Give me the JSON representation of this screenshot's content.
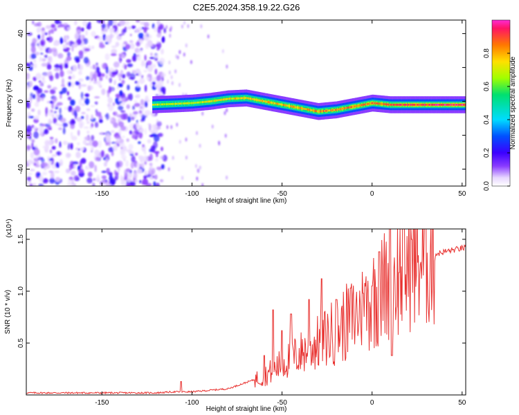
{
  "title": "C2E5.2024.358.19.22.G26",
  "chart_data": [
    {
      "type": "heatmap",
      "title": "C2E5.2024.358.19.22.G26",
      "xlabel": "Height of straight line (km)",
      "ylabel": "Frequency (Hz)",
      "xlim": [
        -192,
        52
      ],
      "ylim": [
        -50,
        48
      ],
      "xticks": [
        -150,
        -100,
        -50,
        0,
        50
      ],
      "yticks": [
        -40,
        -20,
        0,
        20,
        40
      ],
      "noise_region_x": [
        -192,
        -115
      ],
      "signal_start_x": -122,
      "ridge": {
        "x": [
          -122,
          -110,
          -100,
          -90,
          -80,
          -70,
          -60,
          -50,
          -40,
          -30,
          -20,
          -10,
          0,
          10,
          20,
          30,
          40,
          50
        ],
        "freq": [
          -2,
          -1.5,
          -1,
          0,
          1.5,
          2,
          0,
          -2,
          -4,
          -6,
          -5,
          -3,
          -1,
          -2,
          -2,
          -2,
          -2,
          -2
        ]
      },
      "colorbar": {
        "label": "Normalized spectral amplitude",
        "range": [
          0,
          1
        ],
        "ticks": [
          0.0,
          0.2,
          0.4,
          0.6,
          0.8
        ],
        "tick_labels": [
          "0.0",
          "0.2",
          "0.4",
          "0.6",
          "0.8"
        ]
      }
    },
    {
      "type": "line",
      "xlabel": "Height of straight line (km)",
      "ylabel": "SNR (10 * v/v)",
      "ylabel_scale": "(x10⁴)",
      "xlim": [
        -192,
        52
      ],
      "ylim": [
        0,
        1.6
      ],
      "xticks": [
        -150,
        -100,
        -50,
        0,
        50
      ],
      "yticks": [
        0.5,
        1.0,
        1.5
      ],
      "ytick_labels": [
        "0.5",
        "1.0",
        "1.5"
      ],
      "color": "#e8312f",
      "trend": {
        "x": [
          -192,
          -120,
          -110,
          -100,
          -80,
          -60,
          -50,
          -40,
          -30,
          -20,
          -10,
          0,
          10,
          20,
          30,
          40,
          52
        ],
        "y": [
          0.02,
          0.02,
          0.03,
          0.03,
          0.06,
          0.18,
          0.3,
          0.4,
          0.5,
          0.62,
          0.75,
          0.92,
          1.1,
          1.25,
          1.33,
          1.38,
          1.42
        ]
      },
      "peaks": {
        "x": [
          -106,
          -60,
          -55,
          -50,
          -45,
          -35,
          -28,
          -20,
          -12,
          -5,
          0,
          4,
          10,
          11,
          15,
          22
        ],
        "y": [
          0.13,
          0.38,
          0.82,
          0.62,
          0.78,
          0.92,
          1.12,
          0.92,
          1.03,
          0.98,
          1.05,
          1.38,
          1.62,
          0.38,
          1.18,
          1.5
        ]
      }
    }
  ]
}
